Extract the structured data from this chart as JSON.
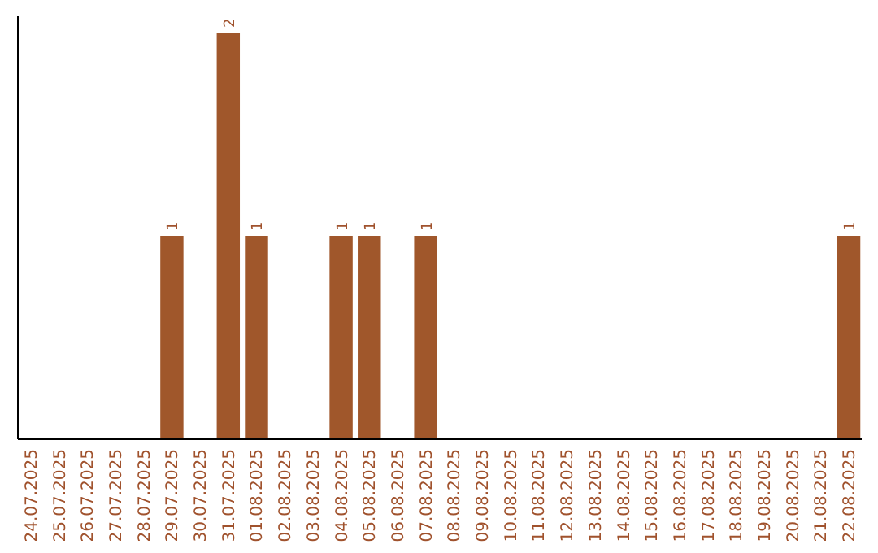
{
  "chart_data": {
    "type": "bar",
    "categories": [
      "24.07.2025",
      "25.07.2025",
      "26.07.2025",
      "27.07.2025",
      "28.07.2025",
      "29.07.2025",
      "30.07.2025",
      "31.07.2025",
      "01.08.2025",
      "02.08.2025",
      "03.08.2025",
      "04.08.2025",
      "05.08.2025",
      "06.08.2025",
      "07.08.2025",
      "08.08.2025",
      "09.08.2025",
      "10.08.2025",
      "11.08.2025",
      "12.08.2025",
      "13.08.2025",
      "14.08.2025",
      "15.08.2025",
      "16.08.2025",
      "17.08.2025",
      "18.08.2025",
      "19.08.2025",
      "20.08.2025",
      "21.08.2025",
      "22.08.2025"
    ],
    "values": [
      0,
      0,
      0,
      0,
      0,
      1,
      0,
      2,
      1,
      0,
      0,
      1,
      1,
      0,
      1,
      0,
      0,
      0,
      0,
      0,
      0,
      0,
      0,
      0,
      0,
      0,
      0,
      0,
      0,
      1
    ],
    "value_labels": [
      null,
      null,
      null,
      null,
      null,
      "1",
      null,
      "2",
      "1",
      null,
      null,
      "1",
      "1",
      null,
      "1",
      null,
      null,
      null,
      null,
      null,
      null,
      null,
      null,
      null,
      null,
      null,
      null,
      null,
      null,
      "1"
    ],
    "color": "#a0572b"
  }
}
